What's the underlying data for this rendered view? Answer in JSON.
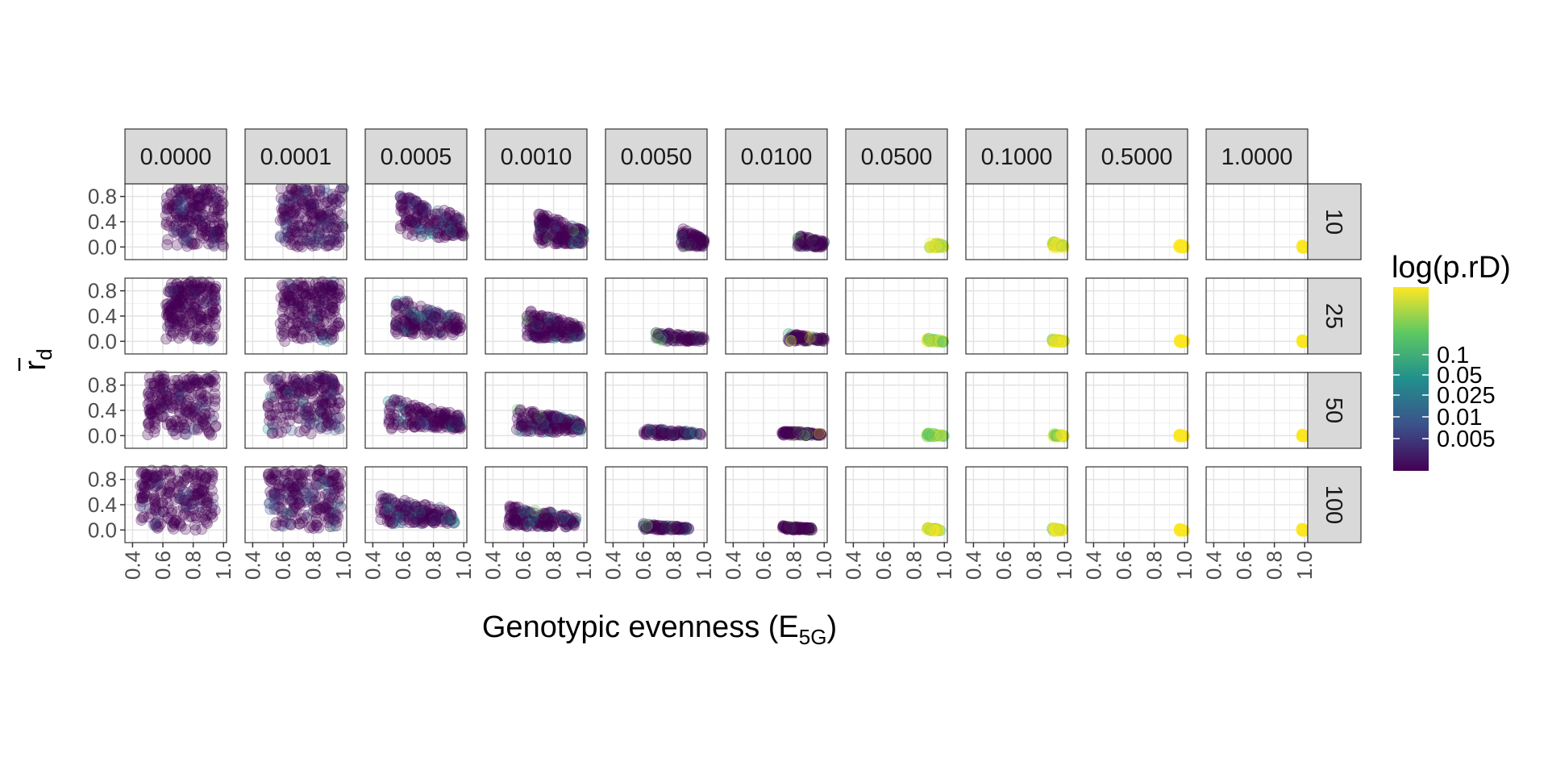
{
  "chart_data": {
    "type": "scatter",
    "x_axis": {
      "label": "Genotypic evenness (E",
      "label_sub": "5G",
      "label_end": ")",
      "range": [
        0.35,
        1.02
      ],
      "ticks": [
        0.4,
        0.6,
        0.8,
        1.0
      ],
      "tick_labels": [
        "0.4",
        "0.6",
        "0.8",
        "1.0"
      ]
    },
    "y_axis": {
      "label": "r",
      "label_sub": "d",
      "range": [
        -0.2,
        1.0
      ],
      "ticks": [
        0.0,
        0.4,
        0.8
      ],
      "tick_labels": [
        "0.0",
        "0.4",
        "0.8"
      ]
    },
    "grid": true,
    "column_facets": [
      "0.0000",
      "0.0001",
      "0.0005",
      "0.0010",
      "0.0050",
      "0.0100",
      "0.0500",
      "0.1000",
      "0.5000",
      "1.0000"
    ],
    "row_facets": [
      "10",
      "25",
      "50",
      "100"
    ],
    "legend": {
      "title": "log(p.rD)",
      "placement": "right",
      "labels": [
        "0.1",
        "0.05",
        "0.025",
        "0.01",
        "0.005"
      ],
      "colors": [
        "#440154",
        "#3b528b",
        "#21908c",
        "#5dc863",
        "#fde725"
      ]
    },
    "point_alpha": 0.25,
    "panels": [
      [
        {
          "xmin": 0.62,
          "xmax": 1.0,
          "ymin": 0.0,
          "ymax": 0.95
        },
        {
          "xmin": 0.58,
          "xmax": 1.0,
          "ymin": 0.0,
          "ymax": 0.95
        },
        {
          "xmin": 0.58,
          "xmax": 1.0,
          "ymin": 0.15,
          "ymax": 0.85
        },
        {
          "xmin": 0.7,
          "xmax": 1.0,
          "ymin": 0.05,
          "ymax": 0.55
        },
        {
          "xmin": 0.85,
          "xmax": 1.0,
          "ymin": 0.0,
          "ymax": 0.3
        },
        {
          "xmin": 0.82,
          "xmax": 1.0,
          "ymin": 0.0,
          "ymax": 0.2
        },
        {
          "xmin": 0.9,
          "xmax": 1.0,
          "ymin": -0.02,
          "ymax": 0.1
        },
        {
          "xmin": 0.92,
          "xmax": 1.0,
          "ymin": -0.02,
          "ymax": 0.1
        },
        {
          "xmin": 0.96,
          "xmax": 1.0,
          "ymin": -0.02,
          "ymax": 0.06
        },
        {
          "xmin": 0.98,
          "xmax": 1.0,
          "ymin": -0.02,
          "ymax": 0.04
        }
      ],
      [
        {
          "xmin": 0.62,
          "xmax": 0.95,
          "ymin": 0.0,
          "ymax": 0.95
        },
        {
          "xmin": 0.58,
          "xmax": 0.98,
          "ymin": 0.0,
          "ymax": 0.95
        },
        {
          "xmin": 0.55,
          "xmax": 0.98,
          "ymin": 0.1,
          "ymax": 0.7
        },
        {
          "xmin": 0.62,
          "xmax": 0.98,
          "ymin": 0.05,
          "ymax": 0.5
        },
        {
          "xmin": 0.68,
          "xmax": 1.0,
          "ymin": 0.0,
          "ymax": 0.15
        },
        {
          "xmin": 0.76,
          "xmax": 1.0,
          "ymin": 0.0,
          "ymax": 0.12
        },
        {
          "xmin": 0.88,
          "xmax": 1.0,
          "ymin": -0.02,
          "ymax": 0.06
        },
        {
          "xmin": 0.92,
          "xmax": 1.0,
          "ymin": -0.02,
          "ymax": 0.05
        },
        {
          "xmin": 0.96,
          "xmax": 1.0,
          "ymin": -0.02,
          "ymax": 0.04
        },
        {
          "xmin": 0.98,
          "xmax": 1.0,
          "ymin": -0.02,
          "ymax": 0.03
        }
      ],
      [
        {
          "xmin": 0.5,
          "xmax": 0.95,
          "ymin": 0.0,
          "ymax": 0.95
        },
        {
          "xmin": 0.5,
          "xmax": 0.98,
          "ymin": 0.0,
          "ymax": 0.95
        },
        {
          "xmin": 0.5,
          "xmax": 0.98,
          "ymin": 0.1,
          "ymax": 0.6
        },
        {
          "xmin": 0.55,
          "xmax": 0.98,
          "ymin": 0.05,
          "ymax": 0.45
        },
        {
          "xmin": 0.6,
          "xmax": 0.98,
          "ymin": 0.0,
          "ymax": 0.12
        },
        {
          "xmin": 0.72,
          "xmax": 0.98,
          "ymin": 0.0,
          "ymax": 0.08
        },
        {
          "xmin": 0.88,
          "xmax": 1.0,
          "ymin": -0.02,
          "ymax": 0.05
        },
        {
          "xmin": 0.92,
          "xmax": 1.0,
          "ymin": -0.02,
          "ymax": 0.04
        },
        {
          "xmin": 0.96,
          "xmax": 1.0,
          "ymin": -0.02,
          "ymax": 0.03
        },
        {
          "xmin": 0.98,
          "xmax": 1.0,
          "ymin": -0.02,
          "ymax": 0.03
        }
      ],
      [
        {
          "xmin": 0.45,
          "xmax": 0.95,
          "ymin": 0.0,
          "ymax": 0.95
        },
        {
          "xmin": 0.5,
          "xmax": 0.98,
          "ymin": 0.0,
          "ymax": 0.95
        },
        {
          "xmin": 0.45,
          "xmax": 0.95,
          "ymin": 0.1,
          "ymax": 0.55
        },
        {
          "xmin": 0.5,
          "xmax": 0.95,
          "ymin": 0.05,
          "ymax": 0.4
        },
        {
          "xmin": 0.6,
          "xmax": 0.9,
          "ymin": 0.0,
          "ymax": 0.1
        },
        {
          "xmin": 0.72,
          "xmax": 0.92,
          "ymin": 0.0,
          "ymax": 0.07
        },
        {
          "xmin": 0.88,
          "xmax": 0.98,
          "ymin": -0.02,
          "ymax": 0.05
        },
        {
          "xmin": 0.92,
          "xmax": 0.99,
          "ymin": -0.02,
          "ymax": 0.04
        },
        {
          "xmin": 0.96,
          "xmax": 1.0,
          "ymin": -0.02,
          "ymax": 0.03
        },
        {
          "xmin": 0.98,
          "xmax": 1.0,
          "ymin": -0.02,
          "ymax": 0.03
        }
      ]
    ]
  }
}
